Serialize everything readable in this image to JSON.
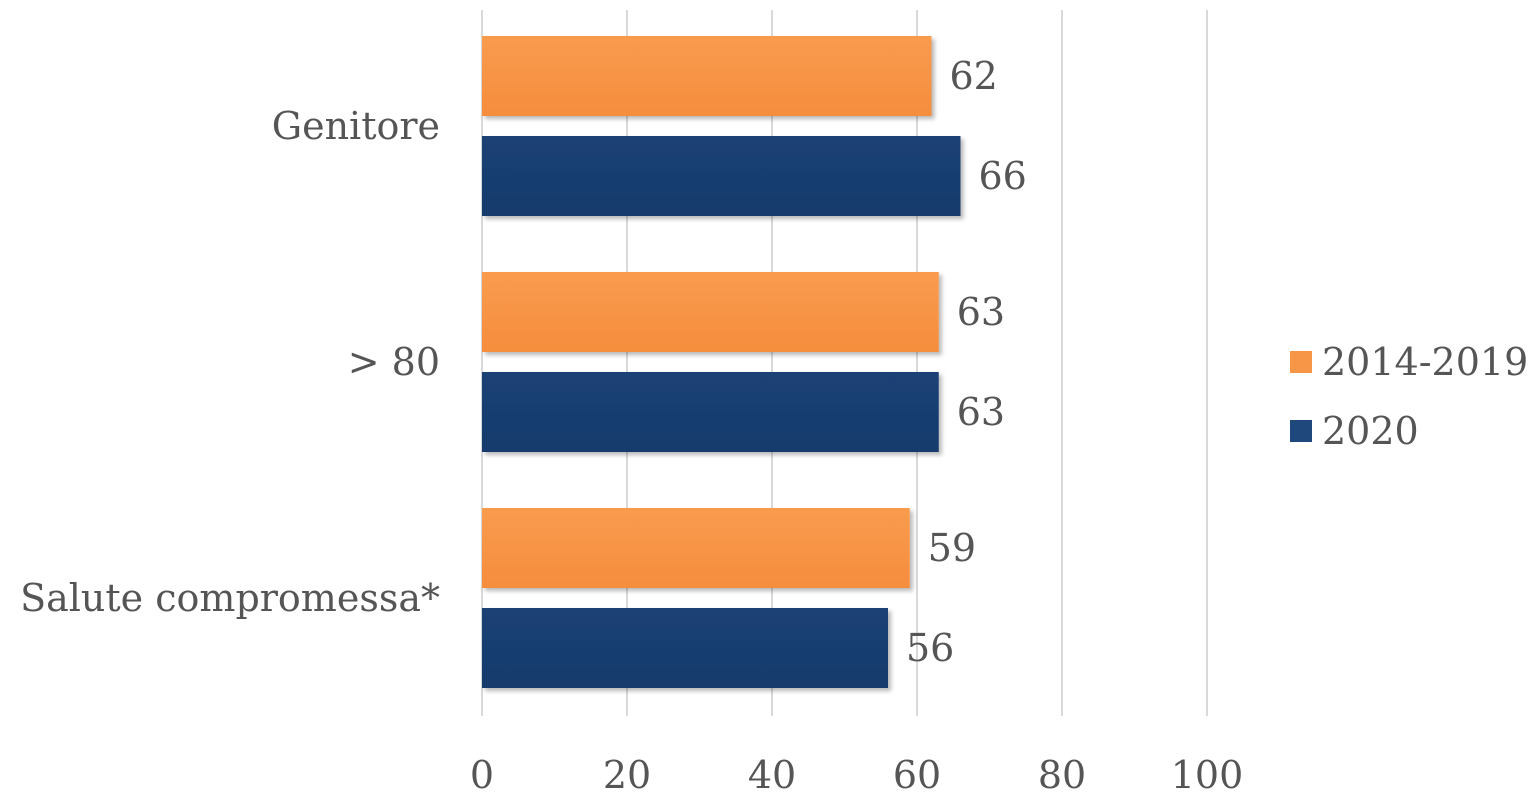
{
  "chart_data": {
    "type": "bar",
    "orientation": "horizontal",
    "categories": [
      "Genitore",
      "> 80",
      "Salute compromessa*"
    ],
    "series": [
      {
        "name": "2014-2019",
        "color": "#F79646",
        "values": [
          62,
          63,
          59
        ]
      },
      {
        "name": "2020",
        "color": "#1F497D",
        "values": [
          66,
          63,
          56
        ]
      }
    ],
    "data_labels": {
      "2014-2019": [
        "62",
        "63",
        "59"
      ],
      "2020": [
        "66",
        "63",
        "56"
      ]
    },
    "xlim": [
      0,
      100
    ],
    "xticks": [
      0,
      20,
      40,
      60,
      80,
      100
    ],
    "xtick_labels": [
      "0",
      "20",
      "40",
      "60",
      "80",
      "100"
    ],
    "grid": "vertical",
    "legend_position": "right",
    "title": "",
    "xlabel": "",
    "ylabel": ""
  }
}
